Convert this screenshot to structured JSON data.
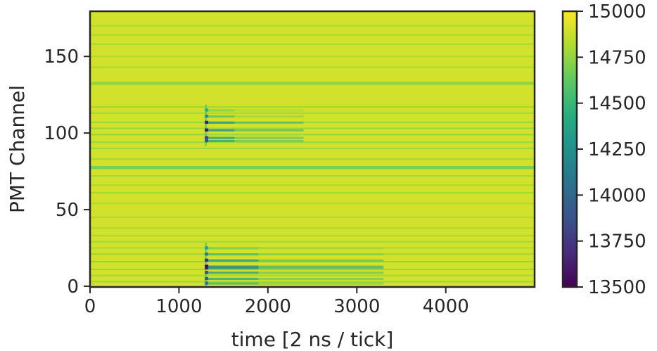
{
  "chart_data": {
    "type": "heatmap",
    "title": "",
    "xlabel": "time [2 ns / tick]",
    "ylabel": "PMT Channel",
    "xlim": [
      0,
      4999
    ],
    "ylim": [
      -0.5,
      179.5
    ],
    "xticks": [
      0,
      1000,
      2000,
      3000,
      4000
    ],
    "yticks": [
      0,
      50,
      100,
      150
    ],
    "grid": false,
    "colormap": "viridis",
    "colorbar": {
      "vmin": 13500,
      "vmax": 15000,
      "ticks": [
        13500,
        13750,
        14000,
        14250,
        14500,
        14750,
        15000
      ]
    },
    "baseline_value": 15000,
    "structure": {
      "uniform_baseline": 14900,
      "channel_stripes": [
        {
          "channel": 3,
          "value": 14780
        },
        {
          "channel": 7,
          "value": 14790
        },
        {
          "channel": 11,
          "value": 14770
        },
        {
          "channel": 16,
          "value": 14760
        },
        {
          "channel": 21,
          "value": 14780
        },
        {
          "channel": 25,
          "value": 14800
        },
        {
          "channel": 29,
          "value": 14790
        },
        {
          "channel": 33,
          "value": 14800
        },
        {
          "channel": 38,
          "value": 14810
        },
        {
          "channel": 45,
          "value": 14800
        },
        {
          "channel": 54,
          "value": 14810
        },
        {
          "channel": 61,
          "value": 14790
        },
        {
          "channel": 66,
          "value": 14800
        },
        {
          "channel": 72,
          "value": 14790
        },
        {
          "channel": 77,
          "value": 14680
        },
        {
          "channel": 78,
          "value": 14700
        },
        {
          "channel": 83,
          "value": 14790
        },
        {
          "channel": 90,
          "value": 14780
        },
        {
          "channel": 94,
          "value": 14770
        },
        {
          "channel": 99,
          "value": 14760
        },
        {
          "channel": 103,
          "value": 14770
        },
        {
          "channel": 107,
          "value": 14770
        },
        {
          "channel": 113,
          "value": 14790
        },
        {
          "channel": 117,
          "value": 14780
        },
        {
          "channel": 132,
          "value": 14720
        },
        {
          "channel": 133,
          "value": 14750
        },
        {
          "channel": 143,
          "value": 14800
        },
        {
          "channel": 150,
          "value": 14810
        },
        {
          "channel": 158,
          "value": 14800
        },
        {
          "channel": 164,
          "value": 14810
        },
        {
          "channel": 170,
          "value": 14810
        }
      ],
      "pulse_groups": [
        {
          "channel_range": [
            0,
            28
          ],
          "onset_tick": 1290,
          "tail_end_tick": 3300,
          "channels": [
            {
              "channel": 13,
              "min_value": 13500
            },
            {
              "channel": 12,
              "min_value": 13600
            },
            {
              "channel": 17,
              "min_value": 13700
            },
            {
              "channel": 9,
              "min_value": 13850
            },
            {
              "channel": 5,
              "min_value": 13950
            },
            {
              "channel": 2,
              "min_value": 14100
            },
            {
              "channel": 21,
              "min_value": 14150
            },
            {
              "channel": 25,
              "min_value": 14400
            }
          ]
        },
        {
          "channel_range": [
            92,
            118
          ],
          "onset_tick": 1290,
          "tail_end_tick": 2400,
          "channels": [
            {
              "channel": 102,
              "min_value": 13600
            },
            {
              "channel": 107,
              "min_value": 13650
            },
            {
              "channel": 97,
              "min_value": 13800
            },
            {
              "channel": 95,
              "min_value": 13900
            },
            {
              "channel": 111,
              "min_value": 14250
            },
            {
              "channel": 115,
              "min_value": 14450
            }
          ]
        }
      ]
    }
  }
}
